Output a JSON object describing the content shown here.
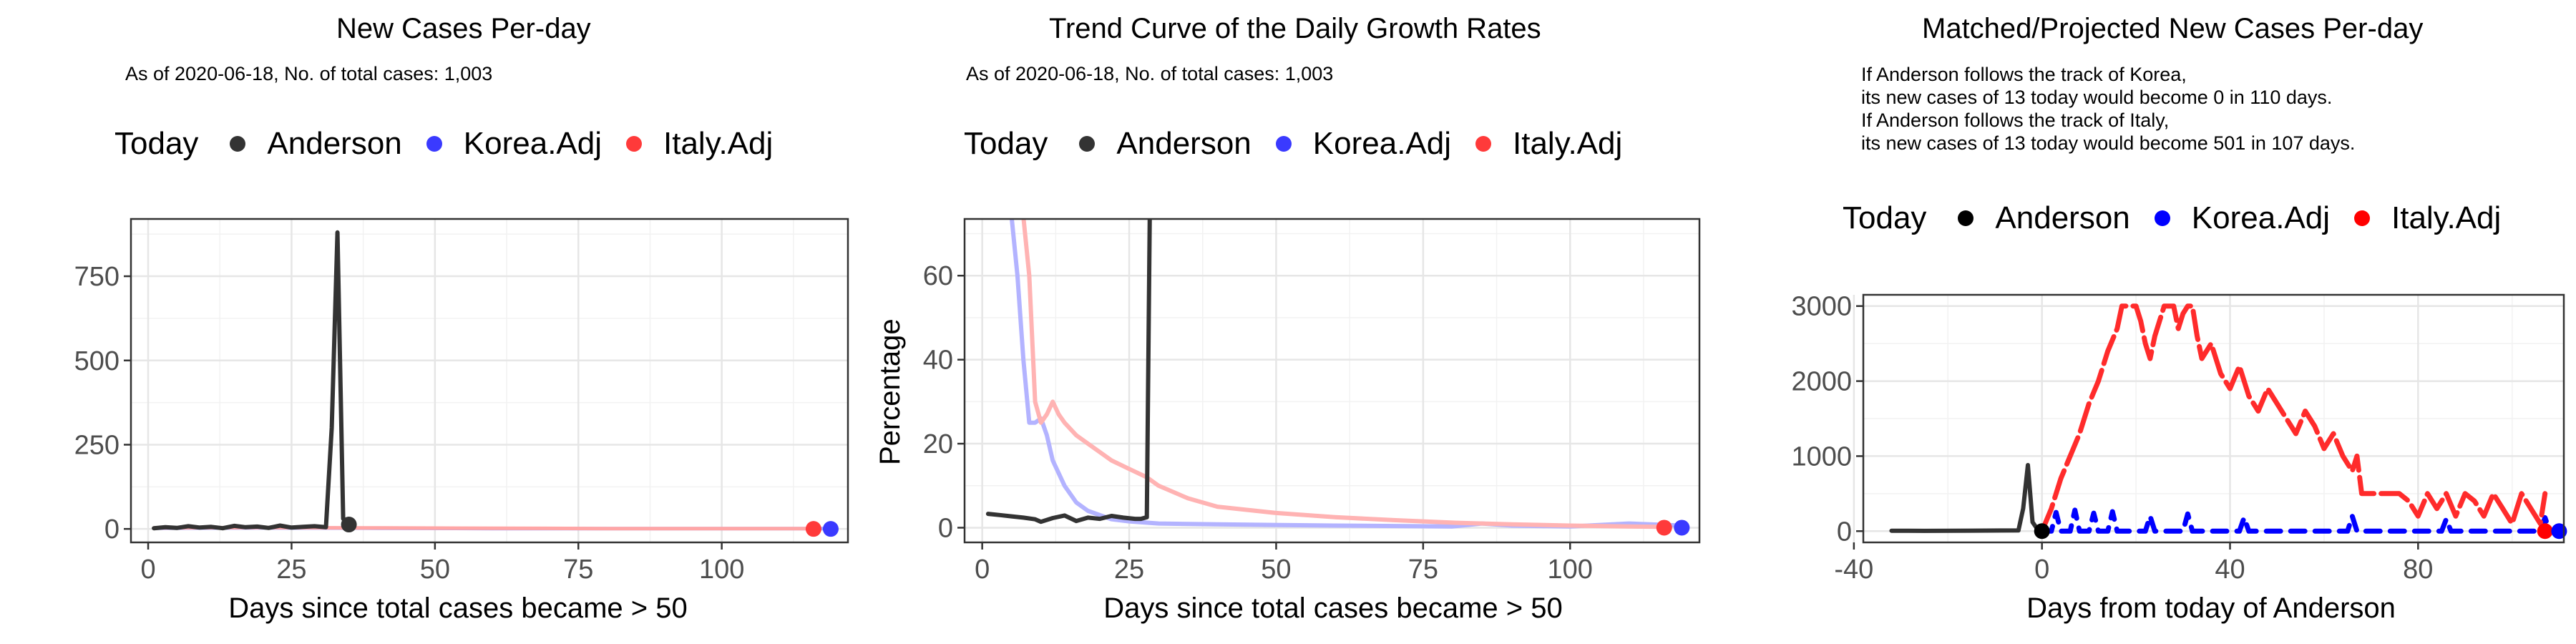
{
  "legend_title": "Today",
  "legend_items": [
    {
      "label": "Anderson",
      "color": "#333333"
    },
    {
      "label": "Korea.Adj",
      "color": "#3a3aff"
    },
    {
      "label": "Italy.Adj",
      "color": "#ff3a3a"
    }
  ],
  "legend_items_panel3": [
    {
      "label": "Anderson",
      "color": "#000000"
    },
    {
      "label": "Korea.Adj",
      "color": "#0000ff"
    },
    {
      "label": "Italy.Adj",
      "color": "#ff0000"
    }
  ],
  "panels": {
    "p1": {
      "title": "New Cases Per-day",
      "subtitle": "As of 2020-06-18, No. of total cases: 1,003"
    },
    "p2": {
      "title": "Trend Curve of the Daily Growth Rates",
      "subtitle": "As of 2020-06-18, No. of total cases: 1,003"
    },
    "p3": {
      "title": "Matched/Projected New Cases Per-day",
      "note_lines": [
        "If Anderson follows the track of Korea,",
        "its new cases of 13 today would become 0 in 110 days.",
        "If Anderson follows the track of Italy,",
        "its new cases of 13 today would become 501 in 107 days."
      ]
    }
  },
  "chart_data": [
    {
      "type": "line",
      "title": "New Cases Per-day",
      "xlabel": "Days since total cases became > 50",
      "ylabel": "",
      "xlim": [
        -3,
        122
      ],
      "ylim": [
        -40,
        920
      ],
      "xticks": [
        0,
        25,
        50,
        75,
        100
      ],
      "yticks": [
        0,
        250,
        500,
        750
      ],
      "yticklabels": [
        "0",
        "250",
        "500",
        "750"
      ],
      "grid": true,
      "legend": "top",
      "series": [
        {
          "name": "Korea.Adj",
          "color": "#a6a6ff",
          "width": 5,
          "x": [
            1,
            20,
            40,
            60,
            80,
            100,
            119
          ],
          "y": [
            2,
            3,
            2,
            1,
            1,
            1,
            1
          ]
        },
        {
          "name": "Italy.Adj",
          "color": "#ffa6a6",
          "width": 5,
          "x": [
            1,
            20,
            40,
            60,
            80,
            100,
            116
          ],
          "y": [
            3,
            4,
            3,
            2,
            1,
            1,
            1
          ]
        },
        {
          "name": "Anderson",
          "color": "#333333",
          "width": 6,
          "x": [
            1,
            3,
            5,
            7,
            9,
            11,
            13,
            15,
            17,
            19,
            21,
            23,
            25,
            27,
            29,
            31,
            32,
            33,
            34,
            35
          ],
          "y": [
            2,
            5,
            3,
            8,
            4,
            6,
            2,
            9,
            5,
            7,
            3,
            10,
            4,
            6,
            8,
            5,
            300,
            880,
            30,
            13
          ]
        }
      ],
      "points": [
        {
          "name": "Anderson",
          "x": 35,
          "y": 13,
          "color": "#333333"
        },
        {
          "name": "Italy.Adj",
          "x": 116,
          "y": 0,
          "color": "#ff3a3a"
        },
        {
          "name": "Korea.Adj",
          "x": 119,
          "y": 0,
          "color": "#3a3aff"
        }
      ]
    },
    {
      "type": "line",
      "title": "Trend Curve of the Daily Growth Rates",
      "xlabel": "Days since total cases became > 50",
      "ylabel": "Percentage",
      "xlim": [
        -3,
        122
      ],
      "ylim": [
        -3.5,
        73.5
      ],
      "xticks": [
        0,
        25,
        50,
        75,
        100
      ],
      "yticks": [
        0,
        20,
        40,
        60
      ],
      "yticklabels": [
        "0",
        "20",
        "40",
        "60"
      ],
      "grid": true,
      "legend": "top",
      "series": [
        {
          "name": "Korea.Adj",
          "color": "#b3b3ff",
          "width": 6,
          "x": [
            5,
            6,
            7,
            8,
            9,
            10,
            11,
            12,
            14,
            16,
            18,
            20,
            22,
            25,
            30,
            40,
            60,
            80,
            85,
            90,
            100,
            110,
            119
          ],
          "y": [
            74,
            60,
            40,
            25,
            25,
            26,
            22,
            16,
            10,
            6,
            4,
            3,
            2,
            1.5,
            1,
            0.8,
            0.5,
            0.3,
            1,
            0.5,
            0.3,
            1,
            0.5
          ]
        },
        {
          "name": "Italy.Adj",
          "color": "#ffb3b3",
          "width": 6,
          "x": [
            7,
            8,
            9,
            10,
            11,
            12,
            13,
            14,
            16,
            18,
            20,
            22,
            25,
            28,
            30,
            35,
            40,
            50,
            60,
            70,
            80,
            90,
            100,
            110,
            116
          ],
          "y": [
            74,
            60,
            30,
            25,
            27,
            30,
            27,
            25,
            22,
            20,
            18,
            16,
            14,
            12,
            10,
            7,
            5,
            3.5,
            2.5,
            1.8,
            1.2,
            0.8,
            0.5,
            0.3,
            0.2
          ]
        },
        {
          "name": "Anderson",
          "color": "#333333",
          "width": 6,
          "x": [
            1,
            3,
            5,
            7,
            9,
            10,
            12,
            14,
            16,
            18,
            20,
            22,
            24,
            26,
            27,
            28,
            28.5
          ],
          "y": [
            3.3,
            3,
            2.7,
            2.4,
            2,
            1.4,
            2.3,
            2.9,
            1.6,
            2.4,
            2.1,
            2.8,
            2.4,
            2.1,
            2.1,
            2.5,
            74
          ]
        }
      ],
      "points": [
        {
          "name": "Italy.Adj",
          "x": 116,
          "y": 0,
          "color": "#ff3a3a"
        },
        {
          "name": "Korea.Adj",
          "x": 119,
          "y": 0,
          "color": "#3a3aff"
        }
      ]
    },
    {
      "type": "line",
      "title": "Matched/Projected New Cases Per-day",
      "xlabel": "Days from today of Anderson",
      "ylabel": "",
      "xlim": [
        -38,
        111
      ],
      "ylim": [
        -150,
        3150
      ],
      "xticks": [
        -40,
        0,
        40,
        80
      ],
      "yticks": [
        0,
        1000,
        2000,
        3000
      ],
      "yticklabels": [
        "0",
        "1000",
        "2000",
        "3000"
      ],
      "grid": true,
      "legend": "top",
      "series": [
        {
          "name": "Anderson",
          "color": "#333333",
          "width": 6,
          "x": [
            -32,
            -25,
            -15,
            -5,
            -4,
            -3,
            -2,
            -1,
            0
          ],
          "y": [
            5,
            4,
            6,
            10,
            300,
            880,
            120,
            30,
            13
          ]
        },
        {
          "name": "Korea.Adj",
          "color": "#0000ff",
          "width": 7,
          "dash": "20,14",
          "x": [
            0,
            2,
            3,
            4,
            6,
            7,
            8,
            10,
            11,
            12,
            14,
            15,
            16,
            20,
            22,
            23,
            24,
            28,
            30,
            31,
            32,
            36,
            40,
            42,
            43,
            44,
            50,
            60,
            65,
            66,
            67,
            70,
            80,
            85,
            86,
            87,
            90,
            100,
            106,
            107,
            108,
            110
          ],
          "y": [
            0,
            0,
            250,
            0,
            0,
            280,
            0,
            0,
            240,
            0,
            0,
            260,
            0,
            0,
            0,
            200,
            0,
            0,
            0,
            230,
            0,
            0,
            0,
            0,
            180,
            0,
            0,
            0,
            0,
            200,
            0,
            0,
            0,
            0,
            160,
            0,
            0,
            0,
            0,
            180,
            0,
            0
          ]
        },
        {
          "name": "Italy.Adj",
          "color": "#ff2b2b",
          "width": 7,
          "dash": "40,10",
          "x": [
            0,
            2,
            4,
            6,
            8,
            10,
            12,
            14,
            16,
            17,
            18,
            19,
            20,
            21,
            22,
            23,
            24,
            26,
            27,
            28,
            29,
            30,
            31,
            32,
            33,
            34,
            36,
            38,
            40,
            42,
            44,
            46,
            48,
            50,
            52,
            54,
            56,
            58,
            60,
            62,
            64,
            66,
            67,
            68,
            70,
            72,
            74,
            76,
            78,
            80,
            82,
            84,
            86,
            88,
            90,
            92,
            94,
            96,
            98,
            100,
            102,
            104,
            106,
            107
          ],
          "y": [
            0,
            300,
            700,
            1000,
            1300,
            1700,
            2000,
            2400,
            2700,
            3000,
            3000,
            3000,
            3000,
            2800,
            2500,
            2300,
            2600,
            3000,
            3000,
            3000,
            2700,
            2900,
            3000,
            3000,
            2600,
            2300,
            2500,
            2100,
            1900,
            2200,
            1800,
            1600,
            1900,
            1700,
            1500,
            1300,
            1600,
            1400,
            1100,
            1300,
            1000,
            800,
            1000,
            500,
            500,
            500,
            500,
            500,
            400,
            200,
            500,
            300,
            500,
            200,
            500,
            400,
            200,
            500,
            300,
            100,
            500,
            300,
            100,
            500
          ]
        }
      ],
      "points": [
        {
          "name": "Anderson",
          "x": 0,
          "y": 0,
          "color": "#000000"
        },
        {
          "name": "Italy.Adj",
          "x": 107,
          "y": 0,
          "color": "#ff0000"
        },
        {
          "name": "Korea.Adj",
          "x": 110,
          "y": 0,
          "color": "#0000ff"
        }
      ]
    }
  ]
}
